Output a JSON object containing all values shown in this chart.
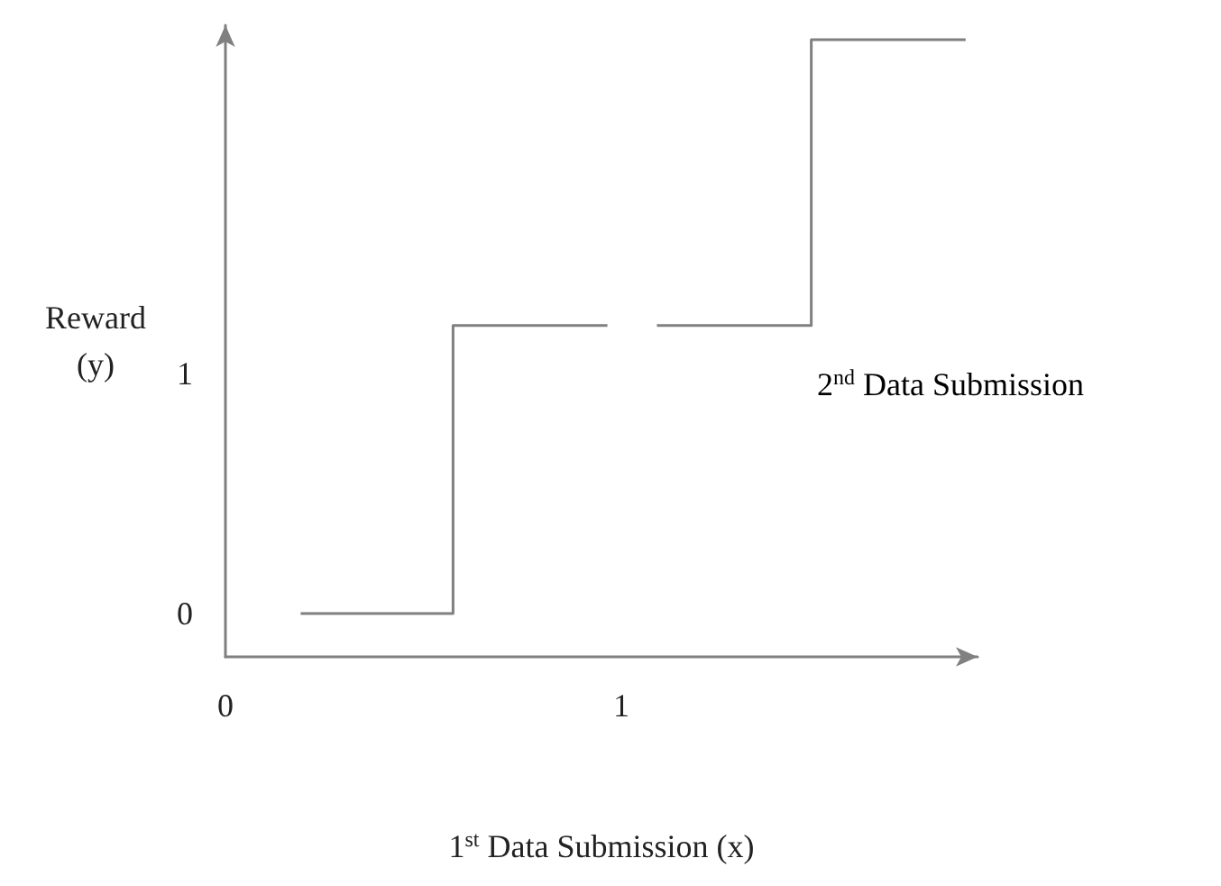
{
  "chart_data": {
    "type": "line",
    "xlabel": "1$^{st}$ Data Submission (x)",
    "ylabel": "Reward (y)",
    "annotations": [
      "2$^{nd}$ Data Submission"
    ],
    "series": [
      {
        "color": "#808080",
        "x": [
          0.19,
          0.575,
          0.575,
          0.965,
          1.03,
          1.09,
          1.48,
          1.48,
          1.87
        ],
        "values": [
          0,
          0,
          1.2,
          1.2,
          null,
          1.2,
          1.2,
          2.39,
          2.39
        ]
      }
    ],
    "xlim": [
      0,
      1.9
    ],
    "xticks": [
      0,
      1
    ],
    "ylim": [
      -0.18,
      2.45
    ],
    "yticks": [
      0,
      1
    ],
    "grid": false,
    "marker": "none",
    "line_style": "solid"
  }
}
